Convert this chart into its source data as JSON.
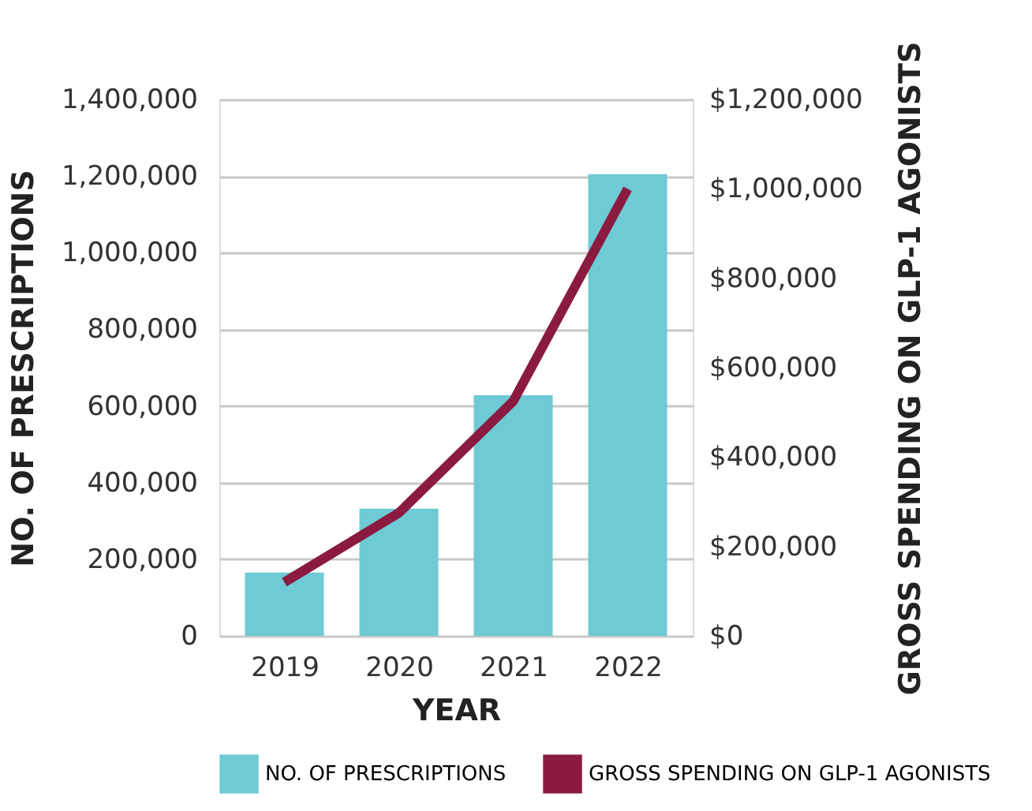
{
  "chart_data": {
    "type": "bar",
    "xlabel": "YEAR",
    "ylabel": "NO. OF PRESCRIPTIONS",
    "y2label": "GROSS SPENDING ON GLP-1 AGONISTS",
    "categories": [
      "2019",
      "2020",
      "2021",
      "2022"
    ],
    "series": [
      {
        "name": "NO. OF PRESCRIPTIONS",
        "color": "#6ecad4",
        "values": [
          165000,
          332000,
          628000,
          1205000
        ]
      },
      {
        "name": "GROSS SPENDING ON GLP-1 AGONISTS",
        "type": "line",
        "axis": "y2",
        "color": "#8b1a40",
        "values": [
          120000,
          275000,
          525000,
          1000000
        ]
      }
    ],
    "ylim": [
      0,
      1400000
    ],
    "yticks": [
      {
        "value": 0,
        "label": "0"
      },
      {
        "value": 200000,
        "label": "200,000"
      },
      {
        "value": 400000,
        "label": "400,000"
      },
      {
        "value": 600000,
        "label": "600,000"
      },
      {
        "value": 800000,
        "label": "800,000"
      },
      {
        "value": 1000000,
        "label": "1,000,000"
      },
      {
        "value": 1200000,
        "label": "1,200,000"
      },
      {
        "value": 1400000,
        "label": "1,400,000"
      }
    ],
    "y2lim": [
      0,
      1200000
    ],
    "y2ticks": [
      {
        "value": 0,
        "label": "$0"
      },
      {
        "value": 200000,
        "label": "$200,000"
      },
      {
        "value": 400000,
        "label": "$400,000"
      },
      {
        "value": 600000,
        "label": "$600,000"
      },
      {
        "value": 800000,
        "label": "$800,000"
      },
      {
        "value": 1000000,
        "label": "$1,000,000"
      },
      {
        "value": 1200000,
        "label": "$1,200,000"
      }
    ],
    "grid": "y",
    "legend": "bottom"
  }
}
